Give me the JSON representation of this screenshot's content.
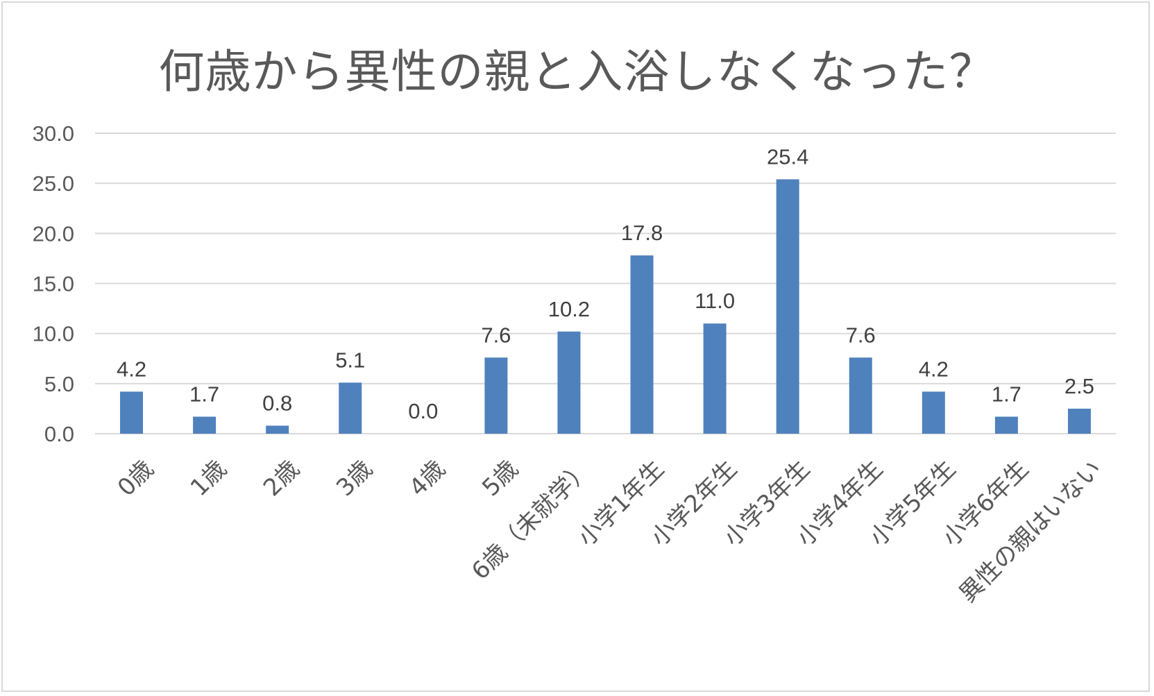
{
  "chart_data": {
    "type": "bar",
    "title": "何歳から異性の親と入浴しなくなった？",
    "categories": [
      "0歳",
      "1歳",
      "2歳",
      "3歳",
      "4歳",
      "5歳",
      "6歳（未就学）",
      "小学1年生",
      "小学2年生",
      "小学3年生",
      "小学4年生",
      "小学5年生",
      "小学6年生",
      "異性の親はいない"
    ],
    "values": [
      4.2,
      1.7,
      0.8,
      5.1,
      0.0,
      7.6,
      10.2,
      17.8,
      11.0,
      25.4,
      7.6,
      4.2,
      1.7,
      2.5
    ],
    "data_labels": [
      "4.2",
      "1.7",
      "0.8",
      "5.1",
      "0.0",
      "7.6",
      "10.2",
      "17.8",
      "11.0",
      "25.4",
      "7.6",
      "4.2",
      "1.7",
      "2.5"
    ],
    "y_ticks": [
      "0.0",
      "5.0",
      "10.0",
      "15.0",
      "20.0",
      "25.0",
      "30.0"
    ],
    "ylim": [
      0,
      30
    ],
    "grid": true,
    "legend": "none",
    "bar_color": "#4f81bd"
  }
}
